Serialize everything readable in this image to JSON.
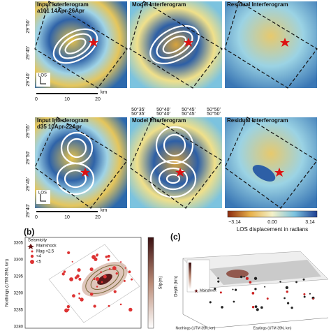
{
  "top": {
    "titles": [
      "Input Interferogram",
      "Model Interferogram",
      "Residual Interferogram"
    ],
    "subtitle": "a101 14Apr-26Apr",
    "yticks": [
      "29°50'",
      "29°45'",
      "29°40'"
    ],
    "scale_unit": "km",
    "scale_ticks": [
      "0",
      "10",
      "20"
    ],
    "xticks": [
      "50°35'",
      "50°40'",
      "50°45'",
      "50°50'"
    ],
    "los": "LOS"
  },
  "middle": {
    "titles": [
      "Input Interferogram",
      "Model Interferogram",
      "Residual Interferogram"
    ],
    "subtitle": "d35 10Apr-22Apr",
    "yticks": [
      "29°55'",
      "29°50'",
      "29°45'",
      "29°40'"
    ],
    "scale_unit": "km",
    "scale_ticks": [
      "0",
      "10",
      "20"
    ],
    "xticks": [
      "50°35'",
      "50°40'",
      "50°45'",
      "50°50'"
    ],
    "los": "LOS"
  },
  "colorbar": {
    "ticks": [
      "−3.14",
      "0.00",
      "3.14"
    ],
    "label": "LOS displacement in radians"
  },
  "panel_b": {
    "label": "(b)",
    "legend_title": "Seismicity",
    "legend": [
      "Mainshock",
      "Mag <2.5",
      "<4",
      "<5"
    ],
    "ylabel": "Northings (UTM 39N, km)",
    "yticks": [
      "3305",
      "3300",
      "3295",
      "3290",
      "3285",
      "3280"
    ],
    "slip_label": "Slip(m)"
  },
  "panel_c": {
    "label": "(c)",
    "zlabel": "Depth (km)",
    "xlabel": "Northings (UTM 39N, km)",
    "ylabel2": "Eastings (UTM 39N, km)",
    "legend": "Mainshock"
  }
}
